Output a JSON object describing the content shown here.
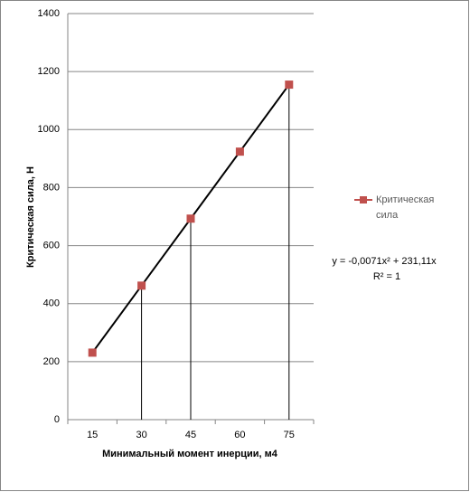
{
  "chart_data": {
    "type": "line",
    "x_label": "Минимальный момент инерции, м4",
    "y_label": "Критическая сила, Н",
    "categories": [
      "15",
      "30",
      "45",
      "60",
      "75"
    ],
    "series": [
      {
        "name": "Критическая сила",
        "color": "#c0504d",
        "values": [
          231,
          462,
          693,
          924,
          1155
        ]
      }
    ],
    "annotations": [
      "y = -0,0071x² + 231,11x",
      "R² = 1"
    ],
    "ylim": [
      0,
      1400
    ],
    "yticks": [
      0,
      200,
      400,
      600,
      800,
      1000,
      1200,
      1400
    ],
    "grid": true,
    "legend": "right"
  }
}
